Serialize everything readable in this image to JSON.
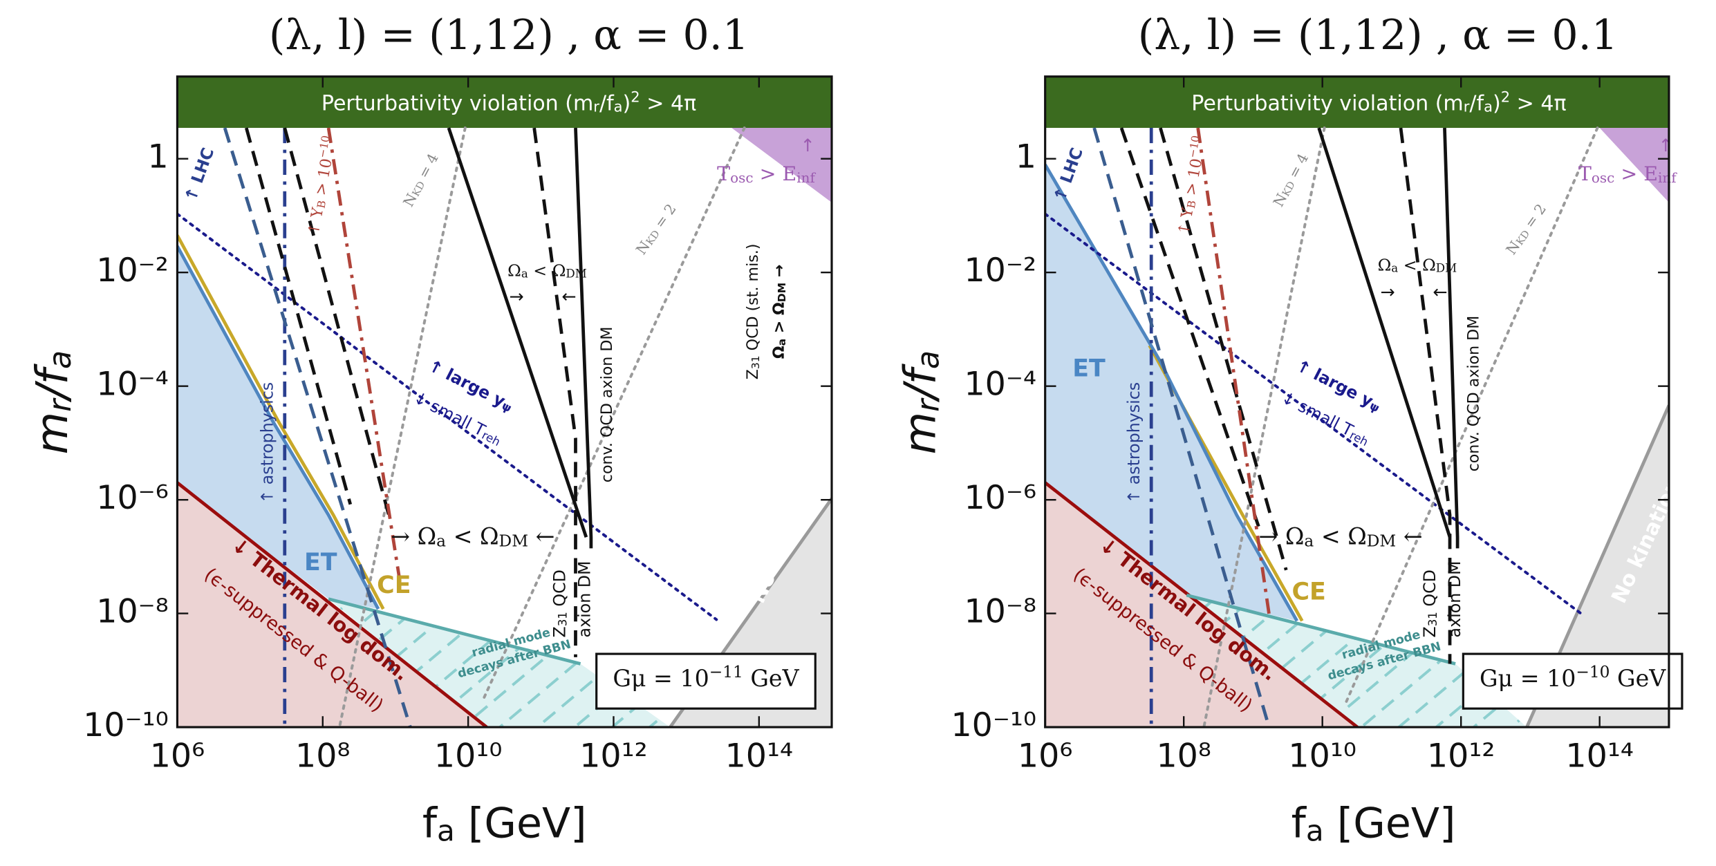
{
  "chart_data": [
    {
      "type": "region",
      "title": "(λ, l) = (1,12) , α = 0.1",
      "xlabel": [
        {
          "t": "f"
        },
        {
          "sub": "a"
        },
        {
          "t": "  [GeV]"
        }
      ],
      "ylabel": [
        {
          "t": "m"
        },
        {
          "sub": "r"
        },
        {
          "t": "/f"
        },
        {
          "sub": "a"
        }
      ],
      "xscale": "log",
      "yscale": "log",
      "xlim": [
        1000000.0,
        1000000000000000.0
      ],
      "ylim": [
        1e-10,
        28
      ],
      "xticks": [
        {
          "value": 1000000.0,
          "label": "10⁶"
        },
        {
          "value": 100000000.0,
          "label": "10⁸"
        },
        {
          "value": 10000000000.0,
          "label": "10¹⁰"
        },
        {
          "value": 1000000000000.0,
          "label": "10¹²"
        },
        {
          "value": 100000000000000.0,
          "label": "10¹⁴"
        }
      ],
      "yticks": [
        {
          "value": 1e-10,
          "label": "10⁻¹⁰"
        },
        {
          "value": 1e-08,
          "label": "10⁻⁸"
        },
        {
          "value": 1e-06,
          "label": "10⁻⁶"
        },
        {
          "value": 0.0001,
          "label": "10⁻⁴"
        },
        {
          "value": 0.01,
          "label": "10⁻²"
        },
        1
      ],
      "regions": [
        {
          "color": "#3b6b1f",
          "x": [
            1000000.0,
            1000000000000000.0,
            1000000000000000.0,
            1000000.0
          ],
          "y": [
            28,
            28,
            3.5,
            3.5
          ]
        },
        {
          "color": "#ecd3d3",
          "x": [
            1000000.0,
            18000000000.0,
            1000000.0
          ],
          "y": [
            2e-06,
            1e-10,
            1e-10
          ]
        },
        {
          "color": "#c6dbef",
          "x": [
            1000000.0,
            21000000.0,
            120000000.0,
            580000000.0,
            120000000.0,
            1000000.0
          ],
          "y": [
            0.029,
            2.3e-05,
            5.4e-07,
            1.2e-08,
            1.8e-08,
            2e-06
          ]
        },
        {
          "color": "#def2f2",
          "hatch": true,
          "x": [
            120000000.0,
            350000000000.0,
            6000000000000.0,
            18000000000.0
          ],
          "y": [
            1.8e-08,
            1.3e-09,
            1e-10,
            1e-10
          ]
        },
        {
          "color": "#e4e4e4",
          "x": [
            6000000000000.0,
            1000000000000000.0,
            1000000000000000.0
          ],
          "y": [
            1e-10,
            1.05e-06,
            1e-10
          ]
        },
        {
          "color": "#c8a2d8",
          "x": [
            42000000000000.0,
            1000000000000000.0,
            1000000000000000.0
          ],
          "y": [
            3.5,
            3.5,
            0.17
          ]
        }
      ],
      "lines": [
        {
          "color": "#9b0d0d",
          "style": "solid",
          "x": [
            1000000.0,
            18000000000.0
          ],
          "y": [
            2e-06,
            1e-10
          ]
        },
        {
          "color": "#c8a82a",
          "style": "solid",
          "x": [
            1000000.0,
            25000000.0,
            140000000.0,
            680000000.0
          ],
          "y": [
            0.045,
            2.3e-05,
            5.4e-07,
            1.2e-08
          ]
        },
        {
          "color": "#4f86c0",
          "style": "solid",
          "x": [
            1000000.0,
            21000000.0,
            120000000.0,
            580000000.0
          ],
          "y": [
            0.029,
            2.3e-05,
            5.4e-07,
            1.2e-08
          ]
        },
        {
          "color": "#5aabab",
          "style": "solid",
          "x": [
            120000000.0,
            350000000000.0
          ],
          "y": [
            1.8e-08,
            1.3e-09
          ]
        },
        {
          "color": "#9a9a9a",
          "style": "solid",
          "x": [
            6000000000000.0,
            1000000000000000.0
          ],
          "y": [
            1e-10,
            1.05e-06
          ]
        },
        {
          "color": "#1a1a8c",
          "style": "dotted",
          "x": [
            1000000.0,
            26000000000000.0
          ],
          "y": [
            0.107,
            7.8e-09
          ]
        },
        {
          "color": "#9a9a9a",
          "style": "dotted",
          "x": [
            9100000000.0,
            170000000.0
          ],
          "y": [
            3.5,
            1e-10
          ]
        },
        {
          "color": "#9a9a9a",
          "style": "dotted",
          "x": [
            63000000000000.0,
            15500000000.0
          ],
          "y": [
            3.5,
            2.75e-10
          ]
        },
        {
          "color": "#2a3f8f",
          "style": "dashdot",
          "x": [
            30000000.0,
            30000000.0
          ],
          "y": [
            3.5,
            1e-10
          ]
        },
        {
          "color": "#3a5d8f",
          "style": "dashed",
          "x": [
            4500000.0,
            1600000000.0
          ],
          "y": [
            3.5,
            1e-10
          ]
        },
        {
          "color": "#111111",
          "style": "dashed",
          "x": [
            8900000.0,
            240000000.0
          ],
          "y": [
            3.5,
            8.3e-07
          ]
        },
        {
          "color": "#111111",
          "style": "dashed",
          "x": [
            30000000.0,
            810000000.0
          ],
          "y": [
            3.5,
            5.4e-07
          ]
        },
        {
          "color": "#b0443a",
          "style": "dashdot",
          "x": [
            120000000.0,
            1150000000.0
          ],
          "y": [
            3.5,
            3.7e-08
          ]
        },
        {
          "color": "#111111",
          "style": "solid",
          "x": [
            5400000000.0,
            420000000000.0
          ],
          "y": [
            3.5,
            2.2e-07
          ]
        },
        {
          "color": "#111111",
          "style": "solid",
          "x": [
            300000000000.0,
            490000000000.0,
            490000000000.0
          ],
          "y": [
            3.5,
            2.2e-07,
            1.4e-07
          ]
        },
        {
          "color": "#111111",
          "style": "dashed",
          "x": [
            81000000000.0,
            300000000000.0,
            300000000000.0
          ],
          "y": [
            3.5,
            1.2e-05,
            1.7e-09
          ]
        }
      ],
      "annotations": [
        [
          {
            "t": "Perturbativity violation (m"
          },
          {
            "sub": "r"
          },
          {
            "t": "/f"
          },
          {
            "sub": "a"
          },
          {
            "t": ")"
          },
          {
            "sup": "2"
          },
          {
            "t": " > 4π"
          }
        ],
        "ET",
        "CE",
        "↓ Thermal log dom.",
        "(ϵ-suppressed & Q-ball)",
        "radial mode",
        "decays after BBN",
        "↑ astrophysics",
        "↑ LHC",
        [
          {
            "t": "↑ Y"
          },
          {
            "sub": "B"
          },
          {
            "t": " > 10"
          },
          {
            "sup": "−10"
          }
        ],
        [
          {
            "t": "N"
          },
          {
            "sub": "KD"
          },
          {
            "t": " = 4"
          }
        ],
        [
          {
            "t": "N"
          },
          {
            "sub": "KD"
          },
          {
            "t": " = 2"
          }
        ],
        [
          {
            "t": "T"
          },
          {
            "sub": "osc"
          },
          {
            "t": " > E"
          },
          {
            "sub": "inf"
          }
        ],
        "↑",
        [
          {
            "t": "Ω"
          },
          {
            "sub": "a"
          },
          {
            "t": " < Ω"
          },
          {
            "sub": "DM"
          }
        ],
        "→",
        "←",
        "conv. QCD axion DM",
        [
          {
            "t": "↑ large y"
          },
          {
            "sub": "ψ"
          }
        ],
        [
          {
            "t": "↓ small T"
          },
          {
            "sub": "reh"
          }
        ],
        [
          {
            "t": "→ Ω"
          },
          {
            "sub": "a"
          },
          {
            "t": " < Ω"
          },
          {
            "sub": "DM"
          },
          {
            "t": " ←"
          }
        ],
        [
          {
            "t": "Z"
          },
          {
            "sub": "31"
          },
          {
            "t": " QCD"
          }
        ],
        "axion DM",
        "No kination",
        [
          {
            "t": "Gμ = 10"
          },
          {
            "sup": "−11"
          },
          {
            "t": " GeV"
          }
        ],
        [
          {
            "t": "Z"
          },
          {
            "sub": "31"
          },
          {
            "t": " QCD (st. mis.)"
          }
        ],
        [
          {
            "t": "Ω"
          },
          {
            "sub": "a"
          },
          {
            "t": " > Ω"
          },
          {
            "sub": "DM"
          },
          {
            "t": " →"
          }
        ]
      ]
    },
    {
      "type": "region",
      "title": "(λ, l) = (1,12) , α = 0.1",
      "xlabel": [
        {
          "t": "f"
        },
        {
          "sub": "a"
        },
        {
          "t": "  [GeV]"
        }
      ],
      "ylabel": [
        {
          "t": "m"
        },
        {
          "sub": "r"
        },
        {
          "t": "/f"
        },
        {
          "sub": "a"
        }
      ],
      "xscale": "log",
      "yscale": "log",
      "xlim": [
        1000000.0,
        1000000000000000.0
      ],
      "ylim": [
        1e-10,
        28
      ],
      "xticks": [
        {
          "value": 1000000.0,
          "label": "10⁶"
        },
        {
          "value": 100000000.0,
          "label": "10⁸"
        },
        {
          "value": 10000000000.0,
          "label": "10¹⁰"
        },
        {
          "value": 1000000000000.0,
          "label": "10¹²"
        },
        {
          "value": 100000000000000.0,
          "label": "10¹⁴"
        }
      ],
      "yticks": [
        {
          "value": 1e-10,
          "label": "10⁻¹⁰"
        },
        {
          "value": 1e-08,
          "label": "10⁻⁸"
        },
        {
          "value": 1e-06,
          "label": "10⁻⁶"
        },
        {
          "value": 0.0001,
          "label": "10⁻⁴"
        },
        {
          "value": 0.01,
          "label": "10⁻²"
        },
        1
      ],
      "regions": [
        {
          "color": "#3b6b1f",
          "x": [
            1000000.0,
            1000000000000000.0,
            1000000000000000.0,
            1000000.0
          ],
          "y": [
            28,
            28,
            3.5,
            3.5
          ]
        },
        {
          "color": "#ecd3d3",
          "x": [
            1000000.0,
            32000000000.0,
            1000000.0
          ],
          "y": [
            2e-06,
            1e-10,
            1e-10
          ]
        },
        {
          "color": "#c6dbef",
          "x": [
            1000000.0,
            46000000.0,
            580000000.0,
            4300000000.0,
            110000000.0,
            1000000.0
          ],
          "y": [
            0.79,
            0.00027,
            5.4e-07,
            7.4e-09,
            2.1e-08,
            2e-06
          ]
        },
        {
          "color": "#def2f2",
          "hatch": true,
          "x": [
            110000000.0,
            830000000000.0,
            8900000000000.0,
            32000000000.0
          ],
          "y": [
            2.1e-08,
            1.3e-09,
            1e-10,
            1e-10
          ]
        },
        {
          "color": "#e4e4e4",
          "x": [
            8900000000000.0,
            1000000000000000.0,
            1000000000000000.0
          ],
          "y": [
            1e-10,
            4.6e-05,
            1e-10
          ]
        },
        {
          "color": "#c8a2d8",
          "x": [
            100000000000000.0,
            1000000000000000.0,
            1000000000000000.0
          ],
          "y": [
            3.5,
            3.5,
            0.17
          ]
        }
      ],
      "lines": [
        {
          "color": "#9b0d0d",
          "style": "solid",
          "x": [
            1000000.0,
            32000000000.0
          ],
          "y": [
            2e-06,
            1e-10
          ]
        },
        {
          "color": "#c8a82a",
          "style": "solid",
          "x": [
            32000000.0,
            580000000.0,
            5100000000.0
          ],
          "y": [
            0.00052,
            8.3e-07,
            7.4e-09
          ]
        },
        {
          "color": "#4f86c0",
          "style": "solid",
          "x": [
            1000000.0,
            46000000.0,
            580000000.0,
            4300000000.0
          ],
          "y": [
            0.79,
            0.00027,
            5.4e-07,
            7.4e-09
          ]
        },
        {
          "color": "#5aabab",
          "style": "solid",
          "x": [
            110000000.0,
            830000000000.0
          ],
          "y": [
            2.1e-08,
            1.3e-09
          ]
        },
        {
          "color": "#9a9a9a",
          "style": "solid",
          "x": [
            8900000000000.0,
            1000000000000000.0
          ],
          "y": [
            1e-10,
            4.6e-05
          ]
        },
        {
          "color": "#1a1a8c",
          "style": "dotted",
          "x": [
            1000000.0,
            55000000000000.0
          ],
          "y": [
            0.107,
            9.8e-09
          ]
        },
        {
          "color": "#9a9a9a",
          "style": "dotted",
          "x": [
            10700000000.0,
            195000000.0
          ],
          "y": [
            3.5,
            1e-10
          ]
        },
        {
          "color": "#9a9a9a",
          "style": "dotted",
          "x": [
            93000000000000.0,
            22000000000.0
          ],
          "y": [
            3.5,
            2.75e-10
          ]
        },
        {
          "color": "#2a3f8f",
          "style": "dashdot",
          "x": [
            34000000.0,
            34000000.0
          ],
          "y": [
            3.5,
            1e-10
          ]
        },
        {
          "color": "#3a5d8f",
          "style": "dashed",
          "x": [
            5100000.0,
            1700000000.0
          ],
          "y": [
            3.5,
            1e-10
          ]
        },
        {
          "color": "#111111",
          "style": "dashed",
          "x": [
            12600000.0,
            1200000000.0
          ],
          "y": [
            3.5,
            3.4e-07
          ]
        },
        {
          "color": "#111111",
          "style": "dashed",
          "x": [
            46000000.0,
            3000000000.0
          ],
          "y": [
            3.5,
            5.8e-08
          ]
        },
        {
          "color": "#b0443a",
          "style": "dashdot",
          "x": [
            160000000.0,
            1700000000.0
          ],
          "y": [
            3.5,
            9.8e-09
          ]
        },
        {
          "color": "#111111",
          "style": "solid",
          "x": [
            8900000000.0,
            690000000000.0
          ],
          "y": [
            3.5,
            2.2e-07
          ]
        },
        {
          "color": "#111111",
          "style": "solid",
          "x": [
            580000000000.0,
            890000000000.0,
            890000000000.0
          ],
          "y": [
            3.5,
            2.2e-07,
            1.4e-07
          ]
        },
        {
          "color": "#111111",
          "style": "dashed",
          "x": [
            135000000000.0,
            690000000000.0,
            690000000000.0
          ],
          "y": [
            3.5,
            5.4e-07,
            1.3e-09
          ]
        }
      ],
      "annotations": [
        [
          {
            "t": "Perturbativity violation (m"
          },
          {
            "sub": "r"
          },
          {
            "t": "/f"
          },
          {
            "sub": "a"
          },
          {
            "t": ")"
          },
          {
            "sup": "2"
          },
          {
            "t": " > 4π"
          }
        ],
        "ET",
        "CE",
        "↓ Thermal log dom.",
        "(ϵ-suppressed & Q-ball)",
        "radial mode",
        "decays after BBN",
        "↑ astrophysics",
        "↑ LHC",
        [
          {
            "t": "↑ Y"
          },
          {
            "sub": "B"
          },
          {
            "t": " > 10"
          },
          {
            "sup": "−10"
          }
        ],
        [
          {
            "t": "N"
          },
          {
            "sub": "KD"
          },
          {
            "t": " = 4"
          }
        ],
        [
          {
            "t": "N"
          },
          {
            "sub": "KD"
          },
          {
            "t": " = 2"
          }
        ],
        [
          {
            "t": "T"
          },
          {
            "sub": "osc"
          },
          {
            "t": " > E"
          },
          {
            "sub": "inf"
          }
        ],
        "↑",
        [
          {
            "t": "Ω"
          },
          {
            "sub": "a"
          },
          {
            "t": " < Ω"
          },
          {
            "sub": "DM"
          }
        ],
        "→",
        "←",
        "conv. QCD axion DM",
        [
          {
            "t": "↑ large y"
          },
          {
            "sub": "ψ"
          }
        ],
        [
          {
            "t": "↓ small T"
          },
          {
            "sub": "reh"
          }
        ],
        [
          {
            "t": "→ Ω"
          },
          {
            "sub": "a"
          },
          {
            "t": " < Ω"
          },
          {
            "sub": "DM"
          },
          {
            "t": " ←"
          }
        ],
        [
          {
            "t": "Z"
          },
          {
            "sub": "31"
          },
          {
            "t": " QCD"
          }
        ],
        "axion DM",
        "No kination",
        [
          {
            "t": "Gμ = 10"
          },
          {
            "sup": "−10"
          },
          {
            "t": " GeV"
          }
        ]
      ]
    }
  ]
}
